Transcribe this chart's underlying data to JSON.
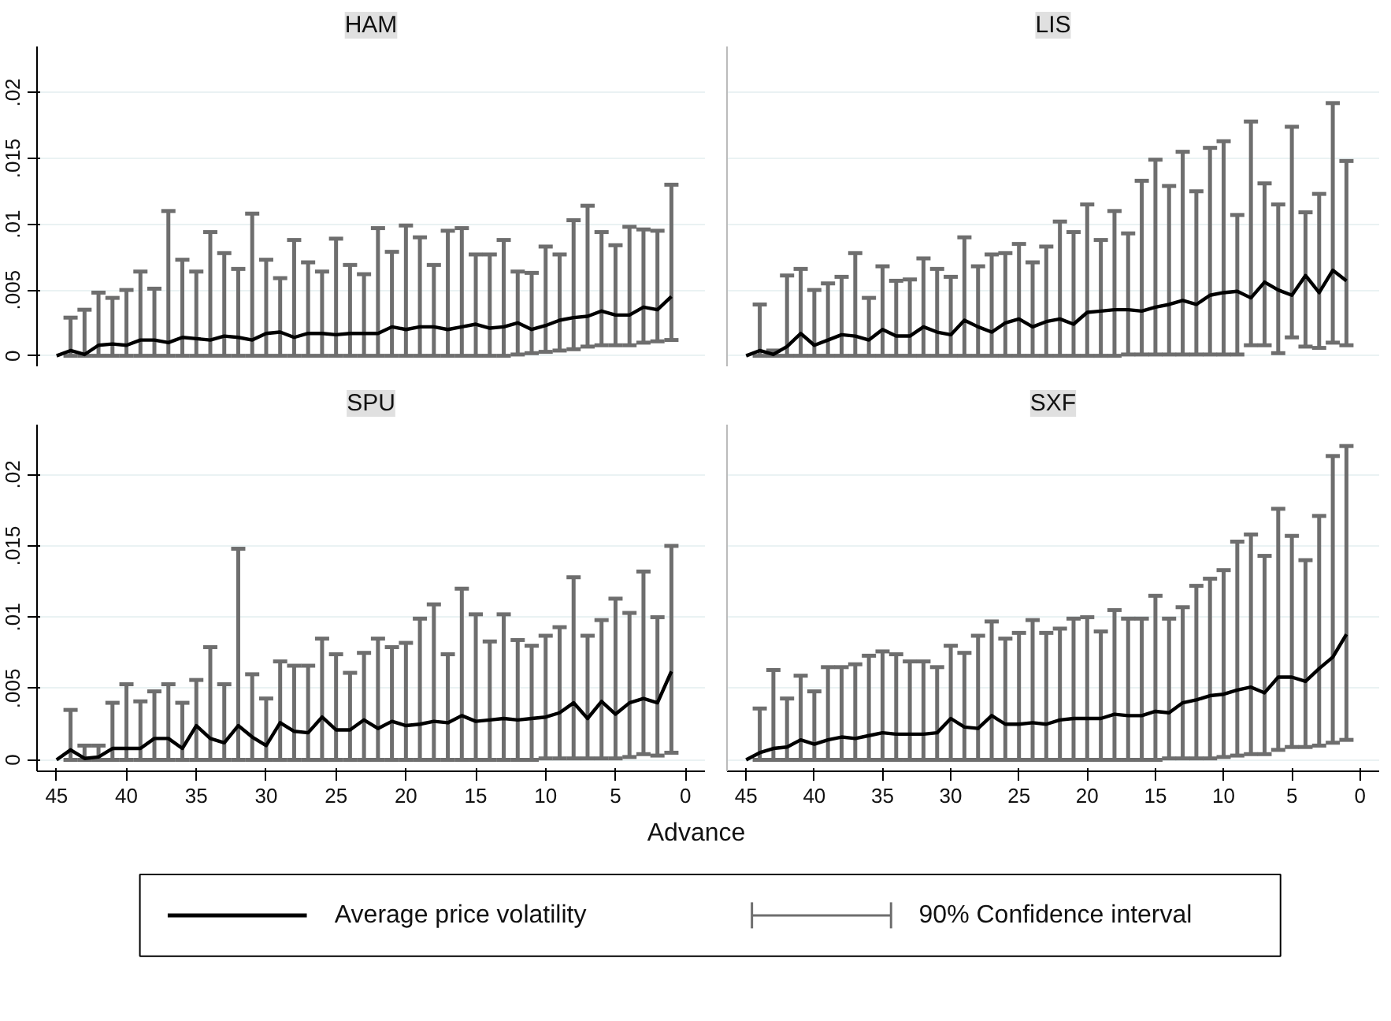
{
  "chart_data": [
    {
      "type": "line",
      "title": "HAM",
      "tick_labels": "y",
      "grid": "y",
      "legend": "bottom",
      "annotations": [
        "90% Confidence interval"
      ],
      "x": [
        45,
        44,
        43,
        42,
        41,
        40,
        39,
        38,
        37,
        36,
        35,
        34,
        33,
        32,
        31,
        30,
        29,
        28,
        27,
        26,
        25,
        24,
        23,
        22,
        21,
        20,
        19,
        18,
        17,
        16,
        15,
        14,
        13,
        12,
        11,
        10,
        9,
        8,
        7,
        6,
        5,
        4,
        3,
        2,
        1
      ],
      "xlim": [
        46.4,
        -1.4
      ],
      "xticks": [
        45,
        40,
        35,
        30,
        25,
        20,
        15,
        10,
        5,
        0
      ],
      "ylim": [
        -0.0008,
        0.0235
      ],
      "yticks": [
        0,
        {
          "value": 0.005,
          "label": ".005"
        },
        {
          "value": 0.01,
          "label": ".01"
        },
        {
          "value": 0.015,
          "label": ".015"
        },
        {
          "value": 0.02,
          "label": ".02"
        }
      ],
      "series": [
        {
          "name": "Average price volatility",
          "color": "#000000",
          "values": [
            0,
            0.0004,
            0.0001,
            0.0008,
            0.0009,
            0.0008,
            0.0012,
            0.0012,
            0.001,
            0.0014,
            0.0013,
            0.0012,
            0.0015,
            0.0014,
            0.0012,
            0.0017,
            0.0018,
            0.0014,
            0.0017,
            0.0017,
            0.0016,
            0.0017,
            0.0017,
            0.0017,
            0.0022,
            0.002,
            0.0022,
            0.0022,
            0.002,
            0.0022,
            0.0024,
            0.0021,
            0.0022,
            0.0025,
            0.002,
            0.0023,
            0.0027,
            0.0029,
            0.003,
            0.0034,
            0.0031,
            0.0031,
            0.0037,
            0.0035,
            0.0045
          ],
          "errors": [
            null,
            [
              0,
              0.0029
            ],
            [
              0,
              0.0035
            ],
            [
              0,
              0.0048
            ],
            [
              0,
              0.0044
            ],
            [
              0,
              0.005
            ],
            [
              0,
              0.0064
            ],
            [
              0,
              0.0051
            ],
            [
              0,
              0.011
            ],
            [
              0,
              0.0073
            ],
            [
              0,
              0.0064
            ],
            [
              0,
              0.0094
            ],
            [
              0,
              0.0078
            ],
            [
              0,
              0.0066
            ],
            [
              0,
              0.0108
            ],
            [
              0,
              0.0073
            ],
            [
              0,
              0.0059
            ],
            [
              0,
              0.0088
            ],
            [
              0,
              0.0071
            ],
            [
              0,
              0.0064
            ],
            [
              0,
              0.0089
            ],
            [
              0,
              0.0069
            ],
            [
              0,
              0.0062
            ],
            [
              0,
              0.0097
            ],
            [
              0,
              0.0079
            ],
            [
              0,
              0.0099
            ],
            [
              0,
              0.009
            ],
            [
              0,
              0.0069
            ],
            [
              0,
              0.0095
            ],
            [
              0,
              0.0097
            ],
            [
              0,
              0.0077
            ],
            [
              0,
              0.0077
            ],
            [
              0,
              0.0088
            ],
            [
              0.0001,
              0.0064
            ],
            [
              0.0002,
              0.0063
            ],
            [
              0.0003,
              0.0083
            ],
            [
              0.0004,
              0.0077
            ],
            [
              0.0005,
              0.0103
            ],
            [
              0.0007,
              0.0114
            ],
            [
              0.0008,
              0.0094
            ],
            [
              0.0008,
              0.0084
            ],
            [
              0.0008,
              0.0098
            ],
            [
              0.001,
              0.0096
            ],
            [
              0.0011,
              0.0095
            ],
            [
              0.0012,
              0.013
            ]
          ]
        }
      ]
    },
    {
      "type": "line",
      "title": "LIS",
      "tick_labels": false,
      "grid": "y",
      "x": [
        45,
        44,
        43,
        42,
        41,
        40,
        39,
        38,
        37,
        36,
        35,
        34,
        33,
        32,
        31,
        30,
        29,
        28,
        27,
        26,
        25,
        24,
        23,
        22,
        21,
        20,
        19,
        18,
        17,
        16,
        15,
        14,
        13,
        12,
        11,
        10,
        9,
        8,
        7,
        6,
        5,
        4,
        3,
        2,
        1
      ],
      "xlim": [
        46.4,
        -1.4
      ],
      "xticks": [
        45,
        40,
        35,
        30,
        25,
        20,
        15,
        10,
        5,
        0
      ],
      "ylim": [
        -0.0008,
        0.0235
      ],
      "yticks": [
        0,
        0.005,
        0.01,
        0.015,
        0.02
      ],
      "series": [
        {
          "color": "#000000",
          "values": [
            0,
            0.0004,
            0.0001,
            0.0007,
            0.0017,
            0.0008,
            0.0012,
            0.0016,
            0.0015,
            0.0012,
            0.002,
            0.0015,
            0.0015,
            0.0022,
            0.0018,
            0.0016,
            0.0027,
            0.0022,
            0.0018,
            0.0025,
            0.0028,
            0.0022,
            0.0026,
            0.0028,
            0.0024,
            0.0033,
            0.0034,
            0.0035,
            0.0035,
            0.0034,
            0.0037,
            0.0039,
            0.0042,
            0.0039,
            0.0046,
            0.0048,
            0.0049,
            0.0044,
            0.0056,
            0.005,
            0.0046,
            0.0061,
            0.0048,
            0.0065,
            0.0057
          ],
          "errors": [
            null,
            [
              0,
              0.0039
            ],
            [
              0,
              0.0004
            ],
            [
              0,
              0.0061
            ],
            [
              0,
              0.0066
            ],
            [
              0,
              0.005
            ],
            [
              0,
              0.0055
            ],
            [
              0,
              0.006
            ],
            [
              0,
              0.0078
            ],
            [
              0,
              0.0044
            ],
            [
              0,
              0.0068
            ],
            [
              0,
              0.0057
            ],
            [
              0,
              0.0058
            ],
            [
              0,
              0.0074
            ],
            [
              0,
              0.0066
            ],
            [
              0,
              0.006
            ],
            [
              0,
              0.009
            ],
            [
              0,
              0.0068
            ],
            [
              0,
              0.0077
            ],
            [
              0,
              0.0078
            ],
            [
              0,
              0.0085
            ],
            [
              0,
              0.0071
            ],
            [
              0,
              0.0083
            ],
            [
              0,
              0.0102
            ],
            [
              0,
              0.0094
            ],
            [
              0,
              0.0115
            ],
            [
              0,
              0.0088
            ],
            [
              0,
              0.011
            ],
            [
              0.0001,
              0.0093
            ],
            [
              0.0001,
              0.0133
            ],
            [
              0.0001,
              0.0149
            ],
            [
              0.0001,
              0.0129
            ],
            [
              0.0001,
              0.0155
            ],
            [
              0.0001,
              0.0125
            ],
            [
              0.0001,
              0.0158
            ],
            [
              0.0001,
              0.0163
            ],
            [
              0.0001,
              0.0107
            ],
            [
              0.0008,
              0.0178
            ],
            [
              0.0008,
              0.0131
            ],
            [
              0.0002,
              0.0115
            ],
            [
              0.0014,
              0.0174
            ],
            [
              0.0007,
              0.0109
            ],
            [
              0.0006,
              0.0123
            ],
            [
              0.001,
              0.0192
            ],
            [
              0.0008,
              0.0148
            ]
          ]
        }
      ]
    },
    {
      "type": "line",
      "title": "SPU",
      "grid": "y",
      "xlabel": "Advance",
      "x": [
        45,
        44,
        43,
        42,
        41,
        40,
        39,
        38,
        37,
        36,
        35,
        34,
        33,
        32,
        31,
        30,
        29,
        28,
        27,
        26,
        25,
        24,
        23,
        22,
        21,
        20,
        19,
        18,
        17,
        16,
        15,
        14,
        13,
        12,
        11,
        10,
        9,
        8,
        7,
        6,
        5,
        4,
        3,
        2,
        1
      ],
      "xlim": [
        46.4,
        -1.4
      ],
      "xticks": [
        45,
        40,
        35,
        30,
        25,
        20,
        15,
        10,
        5,
        0
      ],
      "ylim": [
        -0.0008,
        0.0235
      ],
      "yticks": [
        0,
        {
          "value": 0.005,
          "label": ".005"
        },
        {
          "value": 0.01,
          "label": ".01"
        },
        {
          "value": 0.015,
          "label": ".015"
        },
        {
          "value": 0.02,
          "label": ".02"
        }
      ],
      "series": [
        {
          "color": "#000000",
          "values": [
            0,
            0.0007,
            0.0001,
            0.0002,
            0.0008,
            0.0008,
            0.0008,
            0.0015,
            0.0015,
            0.0008,
            0.0024,
            0.0015,
            0.0012,
            0.0024,
            0.0016,
            0.001,
            0.0026,
            0.002,
            0.0019,
            0.003,
            0.0021,
            0.0021,
            0.0028,
            0.0022,
            0.0027,
            0.0024,
            0.0025,
            0.0027,
            0.0026,
            0.0031,
            0.0027,
            0.0028,
            0.0029,
            0.0028,
            0.0029,
            0.003,
            0.0033,
            0.004,
            0.0029,
            0.0041,
            0.0032,
            0.004,
            0.0043,
            0.004,
            0.0062
          ],
          "errors": [
            null,
            [
              0,
              0.0035
            ],
            [
              0,
              0.001
            ],
            [
              0,
              0.001
            ],
            [
              0,
              0.004
            ],
            [
              0,
              0.0053
            ],
            [
              0,
              0.0041
            ],
            [
              0,
              0.0048
            ],
            [
              0,
              0.0053
            ],
            [
              0,
              0.004
            ],
            [
              0,
              0.0056
            ],
            [
              0,
              0.0079
            ],
            [
              0,
              0.0053
            ],
            [
              0,
              0.0148
            ],
            [
              0,
              0.006
            ],
            [
              0,
              0.0043
            ],
            [
              0,
              0.0069
            ],
            [
              0,
              0.0066
            ],
            [
              0,
              0.0066
            ],
            [
              0,
              0.0085
            ],
            [
              0,
              0.0074
            ],
            [
              0,
              0.0061
            ],
            [
              0,
              0.0075
            ],
            [
              0,
              0.0085
            ],
            [
              0,
              0.0079
            ],
            [
              0,
              0.0082
            ],
            [
              0,
              0.0099
            ],
            [
              0,
              0.0109
            ],
            [
              0,
              0.0074
            ],
            [
              0,
              0.012
            ],
            [
              0,
              0.0102
            ],
            [
              0,
              0.0083
            ],
            [
              0,
              0.0102
            ],
            [
              0,
              0.0084
            ],
            [
              0,
              0.008
            ],
            [
              0.0001,
              0.0087
            ],
            [
              0.0001,
              0.0093
            ],
            [
              0.0001,
              0.0128
            ],
            [
              0.0001,
              0.0087
            ],
            [
              0.0001,
              0.0098
            ],
            [
              0.0001,
              0.0113
            ],
            [
              0.0002,
              0.0103
            ],
            [
              0.0004,
              0.0132
            ],
            [
              0.0003,
              0.01
            ],
            [
              0.0005,
              0.015
            ]
          ]
        }
      ]
    },
    {
      "type": "line",
      "title": "SXF",
      "tick_labels": "x",
      "grid": "y",
      "x": [
        45,
        44,
        43,
        42,
        41,
        40,
        39,
        38,
        37,
        36,
        35,
        34,
        33,
        32,
        31,
        30,
        29,
        28,
        27,
        26,
        25,
        24,
        23,
        22,
        21,
        20,
        19,
        18,
        17,
        16,
        15,
        14,
        13,
        12,
        11,
        10,
        9,
        8,
        7,
        6,
        5,
        4,
        3,
        2,
        1
      ],
      "xlim": [
        46.4,
        -1.4
      ],
      "xticks": [
        45,
        40,
        35,
        30,
        25,
        20,
        15,
        10,
        5,
        0
      ],
      "ylim": [
        -0.0008,
        0.0235
      ],
      "yticks": [
        0,
        0.005,
        0.01,
        0.015,
        0.02
      ],
      "series": [
        {
          "color": "#000000",
          "values": [
            0,
            0.0005,
            0.0008,
            0.0009,
            0.0014,
            0.0011,
            0.0014,
            0.0016,
            0.0015,
            0.0017,
            0.0019,
            0.0018,
            0.0018,
            0.0018,
            0.0019,
            0.0029,
            0.0023,
            0.0022,
            0.0031,
            0.0025,
            0.0025,
            0.0026,
            0.0025,
            0.0028,
            0.0029,
            0.0029,
            0.0029,
            0.0032,
            0.0031,
            0.0031,
            0.0034,
            0.0033,
            0.004,
            0.0042,
            0.0045,
            0.0046,
            0.0049,
            0.0051,
            0.0047,
            0.0058,
            0.0058,
            0.0055,
            0.0064,
            0.0072,
            0.0088
          ],
          "errors": [
            null,
            [
              0,
              0.0036
            ],
            [
              0,
              0.0063
            ],
            [
              0,
              0.0043
            ],
            [
              0,
              0.0059
            ],
            [
              0,
              0.0048
            ],
            [
              0,
              0.0065
            ],
            [
              0,
              0.0065
            ],
            [
              0,
              0.0067
            ],
            [
              0,
              0.0073
            ],
            [
              0,
              0.0076
            ],
            [
              0,
              0.0074
            ],
            [
              0,
              0.0069
            ],
            [
              0,
              0.0069
            ],
            [
              0,
              0.0065
            ],
            [
              0,
              0.008
            ],
            [
              0,
              0.0075
            ],
            [
              0,
              0.0087
            ],
            [
              0,
              0.0097
            ],
            [
              0,
              0.0085
            ],
            [
              0,
              0.0089
            ],
            [
              0,
              0.0098
            ],
            [
              0,
              0.0089
            ],
            [
              0,
              0.0092
            ],
            [
              0,
              0.0099
            ],
            [
              0,
              0.01
            ],
            [
              0,
              0.009
            ],
            [
              0,
              0.0105
            ],
            [
              0,
              0.0099
            ],
            [
              0,
              0.0099
            ],
            [
              0,
              0.0115
            ],
            [
              0.0001,
              0.0099
            ],
            [
              0.0001,
              0.0107
            ],
            [
              0.0001,
              0.0122
            ],
            [
              0.0001,
              0.0127
            ],
            [
              0.0002,
              0.0133
            ],
            [
              0.0003,
              0.0153
            ],
            [
              0.0004,
              0.0158
            ],
            [
              0.0004,
              0.0143
            ],
            [
              0.0007,
              0.0176
            ],
            [
              0.0009,
              0.0157
            ],
            [
              0.0009,
              0.014
            ],
            [
              0.001,
              0.0171
            ],
            [
              0.0012,
              0.0213
            ],
            [
              0.0014,
              0.022
            ]
          ]
        }
      ]
    }
  ]
}
